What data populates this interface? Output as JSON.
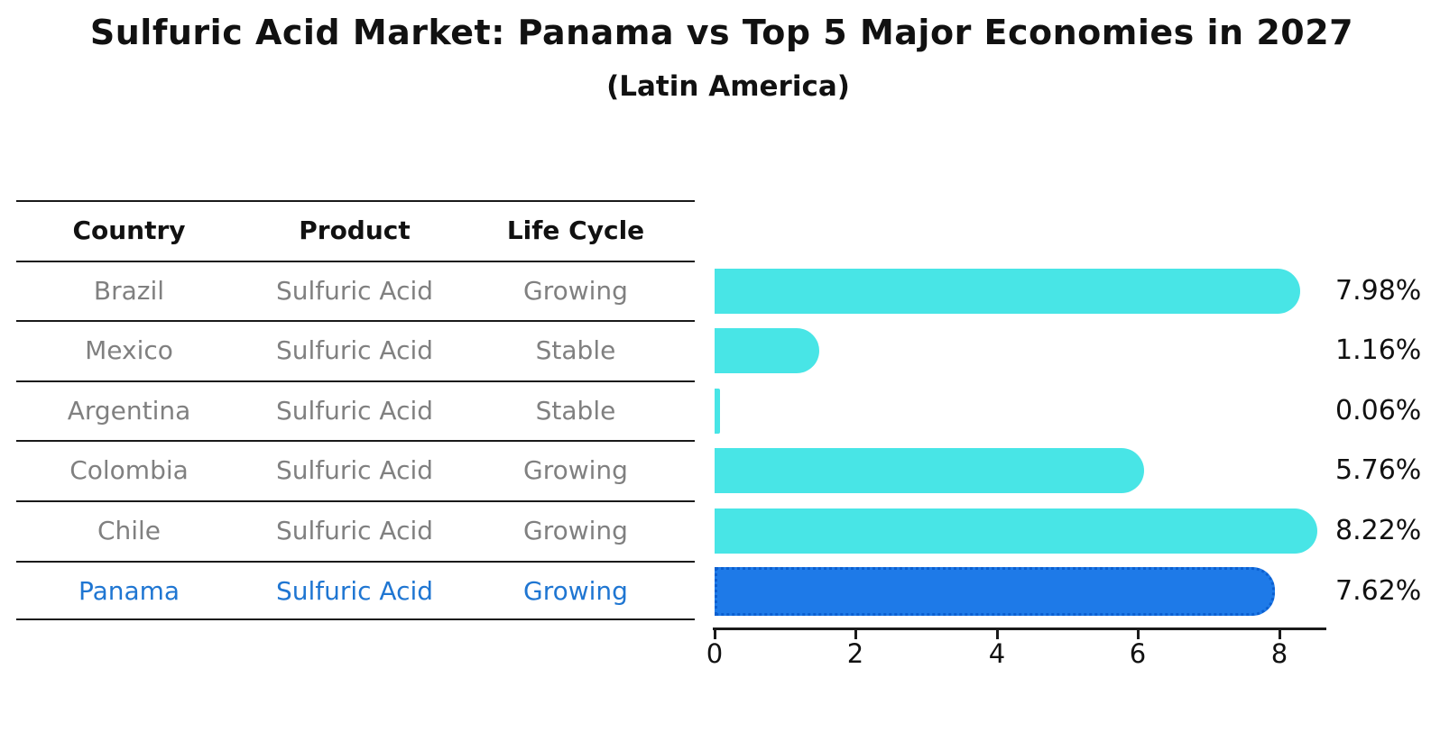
{
  "page": {
    "title": "Sulfuric Acid Market: Panama vs Top 5 Major Economies in 2027",
    "subtitle": "(Latin America)"
  },
  "table": {
    "headers": [
      "Country",
      "Product",
      "Life Cycle"
    ],
    "rows": [
      {
        "country": "Brazil",
        "product": "Sulfuric Acid",
        "life_cycle": "Growing"
      },
      {
        "country": "Mexico",
        "product": "Sulfuric Acid",
        "life_cycle": "Stable"
      },
      {
        "country": "Argentina",
        "product": "Sulfuric Acid",
        "life_cycle": "Stable"
      },
      {
        "country": "Colombia",
        "product": "Sulfuric Acid",
        "life_cycle": "Growing"
      },
      {
        "country": "Chile",
        "product": "Sulfuric Acid",
        "life_cycle": "Growing"
      },
      {
        "country": "Panama",
        "product": "Sulfuric Acid",
        "life_cycle": "Growing"
      }
    ]
  },
  "chart_data": {
    "type": "bar",
    "orientation": "horizontal",
    "title": "Sulfuric Acid Market: Panama vs Top 5 Major Economies in 2027",
    "subtitle": "(Latin America)",
    "categories": [
      "Brazil",
      "Mexico",
      "Argentina",
      "Colombia",
      "Chile",
      "Panama"
    ],
    "values": [
      7.98,
      1.16,
      0.06,
      5.76,
      8.22,
      7.62
    ],
    "value_labels": [
      "7.98%",
      "1.16%",
      "0.06%",
      "5.76%",
      "8.22%",
      "7.62%"
    ],
    "xticks": [
      0,
      2,
      4,
      6,
      8
    ],
    "xlim": [
      0,
      8.66
    ],
    "grid": false,
    "legend": "none",
    "highlight_index": 5
  },
  "colors": {
    "bar": "#48e5e6",
    "highlight_bar": "#1e7ae8",
    "highlight_border": "#0b5fd0",
    "highlight_text": "#1f76d2",
    "row_text": "#808080",
    "ink": "#111111"
  }
}
